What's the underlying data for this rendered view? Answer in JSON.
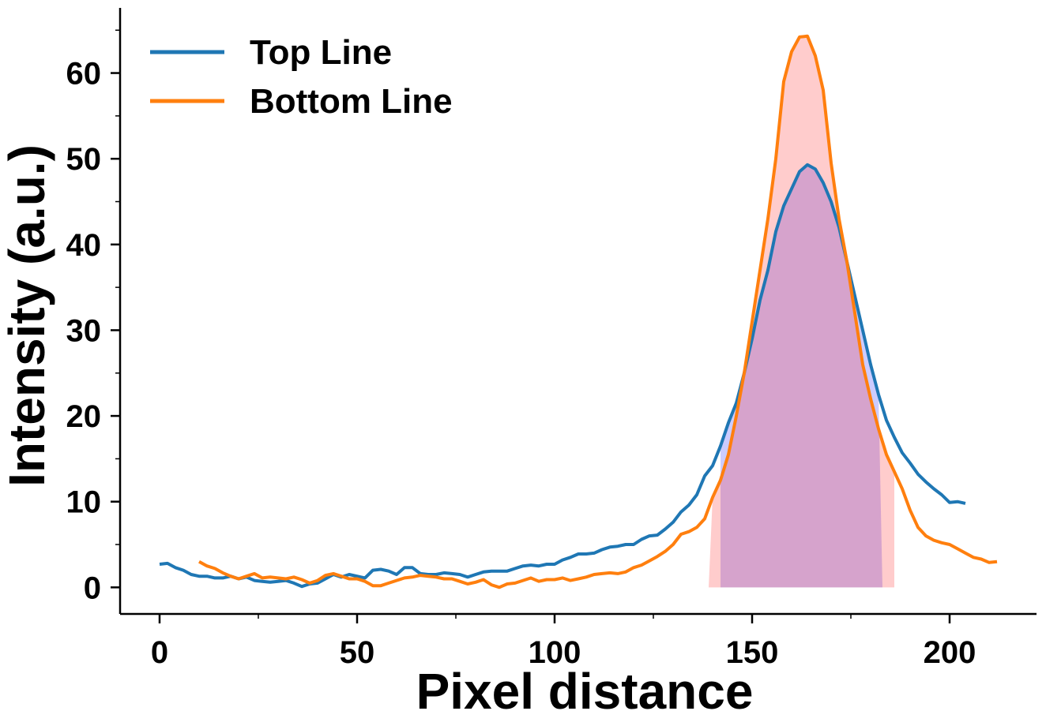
{
  "chart_data": {
    "type": "line",
    "xlabel": "Pixel distance",
    "ylabel": "Intensity (a.u.)",
    "xlim": [
      -10,
      222
    ],
    "ylim": [
      -3.1,
      67.6
    ],
    "x_ticks": [
      0,
      50,
      100,
      150,
      200
    ],
    "x_tick_labels": [
      "0",
      "50",
      "100",
      "150",
      "200"
    ],
    "y_ticks": [
      0,
      10,
      20,
      30,
      40,
      50,
      60
    ],
    "y_tick_labels": [
      "0",
      "10",
      "20",
      "30",
      "40",
      "50",
      "60"
    ],
    "grid": false,
    "legend": {
      "position": "top-left"
    },
    "series": [
      {
        "name": "Top Line",
        "color": "#1f77b4",
        "fill_color": "#0000ff",
        "fill_opacity": 0.2,
        "fill_range": [
          142,
          183
        ],
        "points": [
          [
            0,
            2.7
          ],
          [
            2,
            2.8
          ],
          [
            4,
            2.3
          ],
          [
            6,
            2.0
          ],
          [
            8,
            1.5
          ],
          [
            10,
            1.3
          ],
          [
            12,
            1.3
          ],
          [
            14,
            1.1
          ],
          [
            16,
            1.1
          ],
          [
            18,
            1.3
          ],
          [
            20,
            1.0
          ],
          [
            22,
            1.2
          ],
          [
            24,
            0.8
          ],
          [
            26,
            0.7
          ],
          [
            28,
            0.6
          ],
          [
            30,
            0.7
          ],
          [
            32,
            0.8
          ],
          [
            34,
            0.5
          ],
          [
            36,
            0.1
          ],
          [
            38,
            0.4
          ],
          [
            40,
            0.5
          ],
          [
            42,
            1.0
          ],
          [
            44,
            1.5
          ],
          [
            46,
            1.2
          ],
          [
            48,
            1.5
          ],
          [
            50,
            1.3
          ],
          [
            52,
            1.1
          ],
          [
            54,
            2.0
          ],
          [
            56,
            2.1
          ],
          [
            58,
            1.9
          ],
          [
            60,
            1.5
          ],
          [
            62,
            2.3
          ],
          [
            64,
            2.3
          ],
          [
            66,
            1.6
          ],
          [
            68,
            1.5
          ],
          [
            70,
            1.5
          ],
          [
            72,
            1.7
          ],
          [
            74,
            1.6
          ],
          [
            76,
            1.5
          ],
          [
            78,
            1.2
          ],
          [
            80,
            1.5
          ],
          [
            82,
            1.8
          ],
          [
            84,
            1.9
          ],
          [
            86,
            1.9
          ],
          [
            88,
            1.9
          ],
          [
            90,
            2.2
          ],
          [
            92,
            2.5
          ],
          [
            94,
            2.6
          ],
          [
            96,
            2.5
          ],
          [
            98,
            2.7
          ],
          [
            100,
            2.7
          ],
          [
            102,
            3.2
          ],
          [
            104,
            3.5
          ],
          [
            106,
            3.9
          ],
          [
            108,
            3.9
          ],
          [
            110,
            4.0
          ],
          [
            112,
            4.4
          ],
          [
            114,
            4.7
          ],
          [
            116,
            4.8
          ],
          [
            118,
            5.0
          ],
          [
            120,
            5.0
          ],
          [
            122,
            5.6
          ],
          [
            124,
            6.0
          ],
          [
            126,
            6.1
          ],
          [
            128,
            6.8
          ],
          [
            130,
            7.6
          ],
          [
            132,
            8.8
          ],
          [
            134,
            9.6
          ],
          [
            136,
            10.8
          ],
          [
            138,
            13.0
          ],
          [
            140,
            14.2
          ],
          [
            142,
            16.5
          ],
          [
            144,
            19.2
          ],
          [
            146,
            21.5
          ],
          [
            148,
            25.0
          ],
          [
            150,
            29.0
          ],
          [
            152,
            33.5
          ],
          [
            154,
            37.0
          ],
          [
            156,
            41.5
          ],
          [
            158,
            44.5
          ],
          [
            160,
            46.5
          ],
          [
            162,
            48.5
          ],
          [
            164,
            49.3
          ],
          [
            166,
            48.8
          ],
          [
            168,
            47.2
          ],
          [
            170,
            45.0
          ],
          [
            172,
            42.0
          ],
          [
            174,
            38.0
          ],
          [
            176,
            34.0
          ],
          [
            178,
            30.0
          ],
          [
            180,
            26.0
          ],
          [
            182,
            22.5
          ],
          [
            184,
            19.5
          ],
          [
            186,
            17.5
          ],
          [
            188,
            15.7
          ],
          [
            190,
            14.5
          ],
          [
            192,
            13.2
          ],
          [
            194,
            12.3
          ],
          [
            196,
            11.5
          ],
          [
            198,
            10.8
          ],
          [
            200,
            9.9
          ],
          [
            202,
            10.0
          ],
          [
            204,
            9.8
          ]
        ]
      },
      {
        "name": "Bottom Line",
        "color": "#ff7f0e",
        "fill_color": "#ff0000",
        "fill_opacity": 0.2,
        "fill_range": [
          139,
          186
        ],
        "points": [
          [
            10,
            3.0
          ],
          [
            12,
            2.5
          ],
          [
            14,
            2.2
          ],
          [
            16,
            1.7
          ],
          [
            18,
            1.3
          ],
          [
            20,
            1.0
          ],
          [
            22,
            1.3
          ],
          [
            24,
            1.6
          ],
          [
            26,
            1.1
          ],
          [
            28,
            1.2
          ],
          [
            30,
            1.1
          ],
          [
            32,
            1.0
          ],
          [
            34,
            1.2
          ],
          [
            36,
            0.9
          ],
          [
            38,
            0.5
          ],
          [
            40,
            0.8
          ],
          [
            42,
            1.4
          ],
          [
            44,
            1.6
          ],
          [
            46,
            1.3
          ],
          [
            48,
            1.0
          ],
          [
            50,
            1.0
          ],
          [
            52,
            0.7
          ],
          [
            54,
            0.2
          ],
          [
            56,
            0.2
          ],
          [
            58,
            0.5
          ],
          [
            60,
            0.8
          ],
          [
            62,
            1.1
          ],
          [
            64,
            1.2
          ],
          [
            66,
            1.4
          ],
          [
            68,
            1.3
          ],
          [
            70,
            1.2
          ],
          [
            72,
            1.0
          ],
          [
            74,
            1.0
          ],
          [
            76,
            0.7
          ],
          [
            78,
            0.4
          ],
          [
            80,
            0.6
          ],
          [
            82,
            0.9
          ],
          [
            84,
            0.3
          ],
          [
            86,
            0.0
          ],
          [
            88,
            0.4
          ],
          [
            90,
            0.5
          ],
          [
            92,
            0.8
          ],
          [
            94,
            1.1
          ],
          [
            96,
            0.7
          ],
          [
            98,
            0.9
          ],
          [
            100,
            0.9
          ],
          [
            102,
            1.1
          ],
          [
            104,
            0.8
          ],
          [
            106,
            1.0
          ],
          [
            108,
            1.2
          ],
          [
            110,
            1.5
          ],
          [
            112,
            1.6
          ],
          [
            114,
            1.7
          ],
          [
            116,
            1.6
          ],
          [
            118,
            1.8
          ],
          [
            120,
            2.3
          ],
          [
            122,
            2.6
          ],
          [
            124,
            3.1
          ],
          [
            126,
            3.6
          ],
          [
            128,
            4.2
          ],
          [
            130,
            5.0
          ],
          [
            132,
            6.2
          ],
          [
            134,
            6.5
          ],
          [
            136,
            7.0
          ],
          [
            138,
            8.0
          ],
          [
            140,
            10.5
          ],
          [
            142,
            12.5
          ],
          [
            144,
            15.5
          ],
          [
            146,
            20.0
          ],
          [
            148,
            25.0
          ],
          [
            150,
            31.0
          ],
          [
            152,
            37.0
          ],
          [
            154,
            43.0
          ],
          [
            156,
            50.0
          ],
          [
            158,
            59.0
          ],
          [
            160,
            62.5
          ],
          [
            162,
            64.2
          ],
          [
            164,
            64.3
          ],
          [
            166,
            62.0
          ],
          [
            168,
            58.0
          ],
          [
            170,
            49.5
          ],
          [
            172,
            43.0
          ],
          [
            174,
            38.0
          ],
          [
            176,
            32.0
          ],
          [
            178,
            26.0
          ],
          [
            180,
            22.0
          ],
          [
            182,
            18.5
          ],
          [
            184,
            15.5
          ],
          [
            186,
            13.5
          ],
          [
            188,
            11.5
          ],
          [
            190,
            9.0
          ],
          [
            192,
            7.0
          ],
          [
            194,
            6.0
          ],
          [
            196,
            5.5
          ],
          [
            198,
            5.2
          ],
          [
            200,
            5.0
          ],
          [
            202,
            4.5
          ],
          [
            204,
            4.0
          ],
          [
            206,
            3.5
          ],
          [
            208,
            3.3
          ],
          [
            210,
            2.9
          ],
          [
            212,
            3.0
          ]
        ]
      }
    ]
  }
}
